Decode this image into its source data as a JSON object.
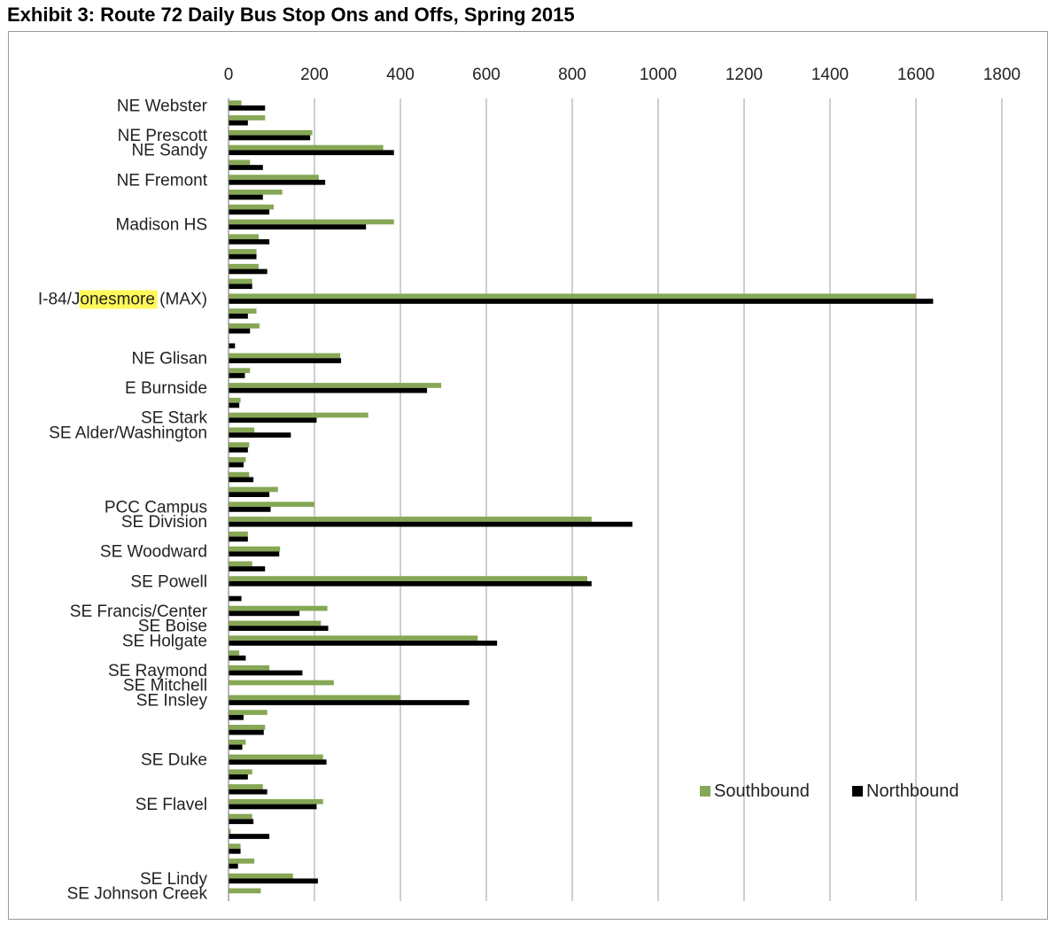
{
  "title": "Exhibit 3: Route 72 Daily Bus Stop Ons and Offs, Spring 2015",
  "highlighted_word": "Jonesmore",
  "colors": {
    "southbound": "#86a755",
    "northbound": "#000000",
    "grid": "#b3b3b3",
    "highlight": "#fff95a"
  },
  "chart_data": {
    "type": "bar",
    "orientation": "horizontal",
    "title": "Exhibit 3: Route 72 Daily Bus Stop Ons and Offs, Spring 2015",
    "xlim": [
      0,
      1800
    ],
    "x_ticks": [
      0,
      200,
      400,
      600,
      800,
      1000,
      1200,
      1400,
      1600,
      1800
    ],
    "grid": "vertical major gridlines",
    "legend_position": "bottom-right (inside plot)",
    "categories": [
      "NE Webster",
      "",
      "NE Prescott",
      "NE Sandy",
      "",
      "NE Fremont",
      "",
      "",
      "Madison HS",
      "",
      "",
      "",
      "",
      "I-84/Jonesmore (MAX)",
      "",
      "",
      "",
      "NE Glisan",
      "",
      "E Burnside",
      "",
      "SE Stark",
      "SE Alder/Washington",
      "",
      "",
      "",
      "",
      "PCC Campus",
      "SE Division",
      "",
      "SE Woodward",
      "",
      "SE Powell",
      "",
      "SE Francis/Center",
      "SE Boise",
      "SE Holgate",
      "",
      "SE Raymond",
      "SE Mitchell",
      "SE Insley",
      "",
      "",
      "",
      "SE Duke",
      "",
      "",
      "SE Flavel",
      "",
      "",
      "",
      "",
      "SE Lindy",
      "SE Johnson Creek"
    ],
    "series": [
      {
        "name": "Southbound",
        "values": [
          30,
          85,
          195,
          360,
          50,
          210,
          125,
          105,
          385,
          70,
          65,
          70,
          55,
          1600,
          65,
          72,
          0,
          260,
          50,
          495,
          28,
          325,
          60,
          48,
          40,
          48,
          115,
          200,
          845,
          45,
          120,
          55,
          835,
          0,
          230,
          215,
          580,
          25,
          95,
          245,
          400,
          90,
          85,
          40,
          220,
          55,
          80,
          220,
          55,
          5,
          28,
          60,
          150,
          75
        ]
      },
      {
        "name": "Northbound",
        "values": [
          85,
          45,
          190,
          385,
          80,
          225,
          80,
          95,
          320,
          95,
          65,
          90,
          55,
          1640,
          45,
          50,
          15,
          262,
          38,
          462,
          25,
          205,
          145,
          45,
          35,
          58,
          95,
          98,
          940,
          45,
          118,
          85,
          845,
          30,
          165,
          232,
          625,
          40,
          172,
          0,
          560,
          35,
          82,
          32,
          228,
          45,
          90,
          205,
          58,
          95,
          28,
          22,
          208,
          0
        ]
      }
    ]
  }
}
